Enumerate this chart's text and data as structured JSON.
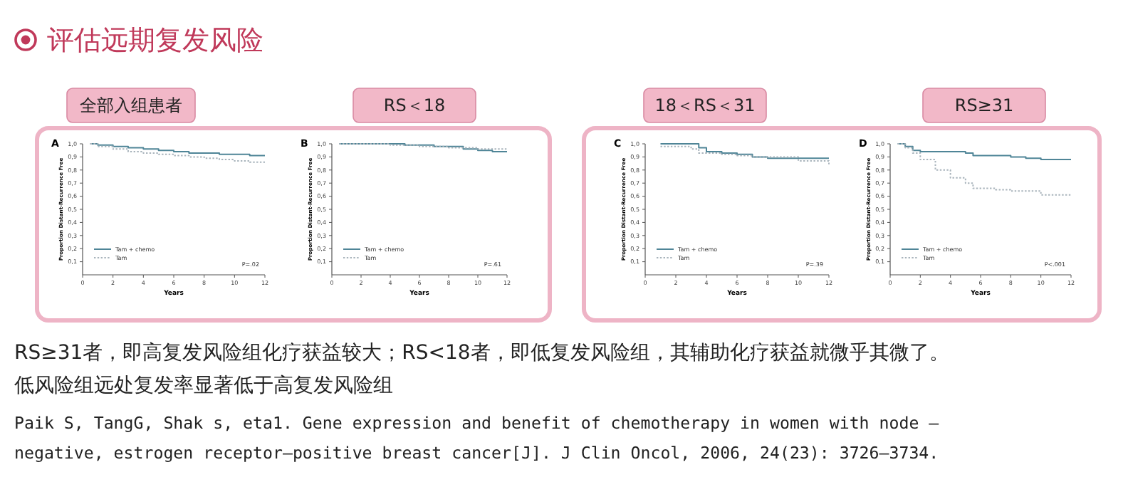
{
  "chart_data": [
    {
      "type": "step",
      "title": "A",
      "subtitle": "全部入组患者",
      "xlabel": "Years",
      "ylabel": "Proportion Distant-Recurrence Free",
      "xlim": [
        0,
        12
      ],
      "ylim": [
        0,
        1.0
      ],
      "xticks": [
        0,
        2,
        4,
        6,
        8,
        10,
        12
      ],
      "yticks": [
        {
          "value": 0.1,
          "label": "0,1"
        },
        {
          "value": 0.2,
          "label": "0,2"
        },
        {
          "value": 0.3,
          "label": "0,3"
        },
        {
          "value": 0.4,
          "label": "0,4"
        },
        {
          "value": 0.5,
          "label": "0,5"
        },
        {
          "value": 0.6,
          "label": "0,6"
        },
        {
          "value": 0.7,
          "label": "0,7"
        },
        {
          "value": 0.8,
          "label": "0,8"
        },
        {
          "value": 0.9,
          "label": "0,9"
        },
        {
          "value": 1.0,
          "label": "1,0"
        }
      ],
      "legend": "bottom left",
      "grid": false,
      "annotations": [
        "评估远期复发风险",
        "P=.02"
      ],
      "series": [
        {
          "name": "Tam + chemo",
          "color": "#4f8597",
          "line_style": "solid",
          "x": [
            0.5,
            1,
            2,
            3,
            4,
            5,
            6,
            7,
            8,
            9,
            10,
            11,
            12
          ],
          "values": [
            1,
            0.99,
            0.98,
            0.97,
            0.96,
            0.95,
            0.94,
            0.93,
            0.93,
            0.92,
            0.92,
            0.91,
            0.91
          ]
        },
        {
          "name": "Tam",
          "color": "#a9b4bc",
          "line_style": "dotted",
          "x": [
            0.5,
            1,
            2,
            3,
            4,
            5,
            6,
            7,
            8,
            9,
            10,
            11,
            12
          ],
          "values": [
            1,
            0.98,
            0.96,
            0.94,
            0.93,
            0.92,
            0.91,
            0.9,
            0.89,
            0.88,
            0.87,
            0.86,
            0.86
          ]
        }
      ]
    },
    {
      "type": "step",
      "title": "B",
      "subtitle": "RS＜18",
      "xlabel": "Years",
      "ylabel": "Proportion Distant-Recurrence Free",
      "xlim": [
        0,
        12
      ],
      "ylim": [
        0,
        1.0
      ],
      "xticks": [
        0,
        2,
        4,
        6,
        8,
        10,
        12
      ],
      "yticks": [
        {
          "value": 0.1,
          "label": "0,1"
        },
        {
          "value": 0.2,
          "label": "0,2"
        },
        {
          "value": 0.3,
          "label": "0,3"
        },
        {
          "value": 0.4,
          "label": "0,4"
        },
        {
          "value": 0.5,
          "label": "0,5"
        },
        {
          "value": 0.6,
          "label": "0,6"
        },
        {
          "value": 0.7,
          "label": "0,7"
        },
        {
          "value": 0.8,
          "label": "0,8"
        },
        {
          "value": 0.9,
          "label": "0,9"
        },
        {
          "value": 1.0,
          "label": "1,0"
        }
      ],
      "legend": "bottom left",
      "grid": false,
      "annotations": [
        "P=.61"
      ],
      "series": [
        {
          "name": "Tam + chemo",
          "color": "#4f8597",
          "line_style": "solid",
          "x": [
            0.5,
            1,
            2,
            3,
            4,
            5,
            6,
            7,
            8,
            9,
            10,
            11,
            12
          ],
          "values": [
            1,
            1,
            1,
            1,
            1,
            0.99,
            0.99,
            0.98,
            0.98,
            0.96,
            0.95,
            0.94,
            0.94
          ]
        },
        {
          "name": "Tam",
          "color": "#a9b4bc",
          "line_style": "dotted",
          "x": [
            0.5,
            1,
            2,
            3,
            4,
            5,
            6,
            7,
            8,
            9,
            10,
            11,
            12
          ],
          "values": [
            1,
            1,
            1,
            1,
            0.99,
            0.99,
            0.98,
            0.98,
            0.97,
            0.97,
            0.96,
            0.96,
            0.96
          ]
        }
      ]
    },
    {
      "type": "step",
      "title": "C",
      "subtitle": "18＜RS＜31",
      "xlabel": "Years",
      "ylabel": "Proportion Distant-Recurrence Free",
      "xlim": [
        0,
        12
      ],
      "ylim": [
        0,
        1.0
      ],
      "xticks": [
        0,
        2,
        4,
        6,
        8,
        10,
        12
      ],
      "yticks": [
        {
          "value": 0.1,
          "label": "0,1"
        },
        {
          "value": 0.2,
          "label": "0,2"
        },
        {
          "value": 0.3,
          "label": "0,3"
        },
        {
          "value": 0.4,
          "label": "0,4"
        },
        {
          "value": 0.5,
          "label": "0,5"
        },
        {
          "value": 0.6,
          "label": "0,6"
        },
        {
          "value": 0.7,
          "label": "0,7"
        },
        {
          "value": 0.8,
          "label": "0,8"
        },
        {
          "value": 0.9,
          "label": "0,9"
        },
        {
          "value": 1.0,
          "label": "1,0"
        }
      ],
      "legend": "bottom left",
      "grid": false,
      "annotations": [
        "P=.39"
      ],
      "series": [
        {
          "name": "Tam + chemo",
          "color": "#4f8597",
          "line_style": "solid",
          "x": [
            1,
            2,
            3,
            3.5,
            4,
            5,
            6,
            7,
            8,
            9,
            10,
            12
          ],
          "values": [
            1,
            1,
            1,
            0.97,
            0.94,
            0.93,
            0.92,
            0.9,
            0.89,
            0.89,
            0.89,
            0.89
          ]
        },
        {
          "name": "Tam",
          "color": "#a9b4bc",
          "line_style": "dotted",
          "x": [
            1,
            2,
            3,
            3.5,
            4,
            5,
            6,
            7,
            8,
            9,
            10,
            12
          ],
          "values": [
            0.98,
            0.98,
            0.96,
            0.93,
            0.93,
            0.92,
            0.91,
            0.9,
            0.9,
            0.9,
            0.87,
            0.83
          ]
        }
      ]
    },
    {
      "type": "step",
      "title": "D",
      "subtitle": "RS≥31",
      "xlabel": "Years",
      "ylabel": "Proportion Distant-Recurrence Free",
      "xlim": [
        0,
        12
      ],
      "ylim": [
        0,
        1.0
      ],
      "xticks": [
        0,
        2,
        4,
        6,
        8,
        10,
        12
      ],
      "yticks": [
        {
          "value": 0.1,
          "label": "0,1"
        },
        {
          "value": 0.2,
          "label": "0,2"
        },
        {
          "value": 0.3,
          "label": "0,3"
        },
        {
          "value": 0.4,
          "label": "0,4"
        },
        {
          "value": 0.5,
          "label": "0,5"
        },
        {
          "value": 0.6,
          "label": "0,6"
        },
        {
          "value": 0.7,
          "label": "0,7"
        },
        {
          "value": 0.8,
          "label": "0,8"
        },
        {
          "value": 0.9,
          "label": "0,9"
        },
        {
          "value": 1.0,
          "label": "1,0"
        }
      ],
      "legend": "bottom left",
      "grid": false,
      "annotations": [
        "P<.001",
        "RS≥31者，即高复发风险组化疗获益较大；RS<18者，即低复发风险组，其辅助化疗获益就微乎其微了。",
        "低风险组远处复发率显著低于高复发风险组",
        "Paik S, TangG, Shak s, eta1. Gene expression and benefit of chemotherapy in women with node —",
        "negative, estrogen receptor—positive breast cancer[J]. J Clin Oncol, 2006, 24(23): 3726—3734."
      ],
      "series": [
        {
          "name": "Tam + chemo",
          "color": "#4f8597",
          "line_style": "solid",
          "x": [
            0.5,
            1,
            1.5,
            2,
            3,
            4,
            5,
            5.5,
            7,
            8,
            9,
            10,
            12
          ],
          "values": [
            1,
            0.98,
            0.95,
            0.94,
            0.94,
            0.94,
            0.93,
            0.91,
            0.91,
            0.9,
            0.89,
            0.88,
            0.88
          ]
        },
        {
          "name": "Tam",
          "color": "#a9b4bc",
          "line_style": "dotted",
          "x": [
            0.5,
            1,
            1.5,
            2,
            3,
            4,
            5,
            5.5,
            7,
            8,
            9,
            10,
            12
          ],
          "values": [
            1,
            0.97,
            0.93,
            0.88,
            0.8,
            0.74,
            0.7,
            0.66,
            0.65,
            0.64,
            0.64,
            0.61,
            0.6
          ]
        }
      ]
    }
  ]
}
